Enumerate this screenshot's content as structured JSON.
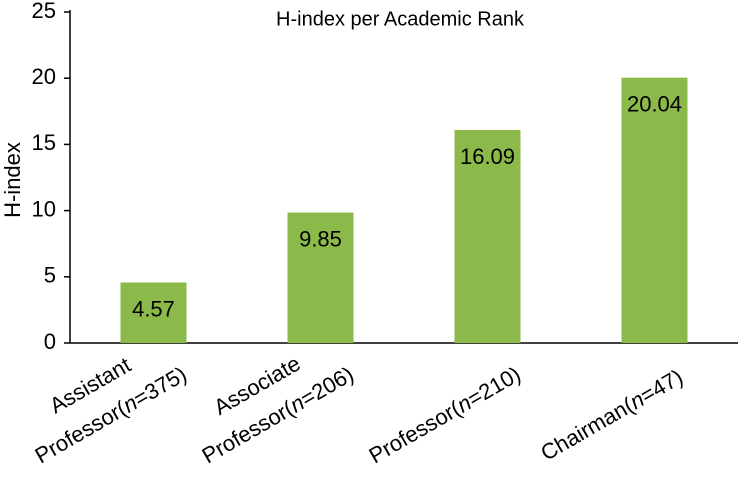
{
  "chart_data": {
    "type": "bar",
    "title": "H-index per Academic Rank",
    "y_label": "H-index",
    "categories": [
      "Assistant Professor(n=375)",
      "Associate Professor(n=206)",
      "Professor(n=210)",
      "Chairman(n=47)"
    ],
    "values": [
      4.57,
      9.85,
      16.09,
      20.04
    ],
    "color": "#8bba4a",
    "ylim": [
      0,
      25
    ],
    "yticks": [
      0,
      5,
      10,
      15,
      20,
      25
    ],
    "grid": false,
    "value_labels_shown": true
  }
}
